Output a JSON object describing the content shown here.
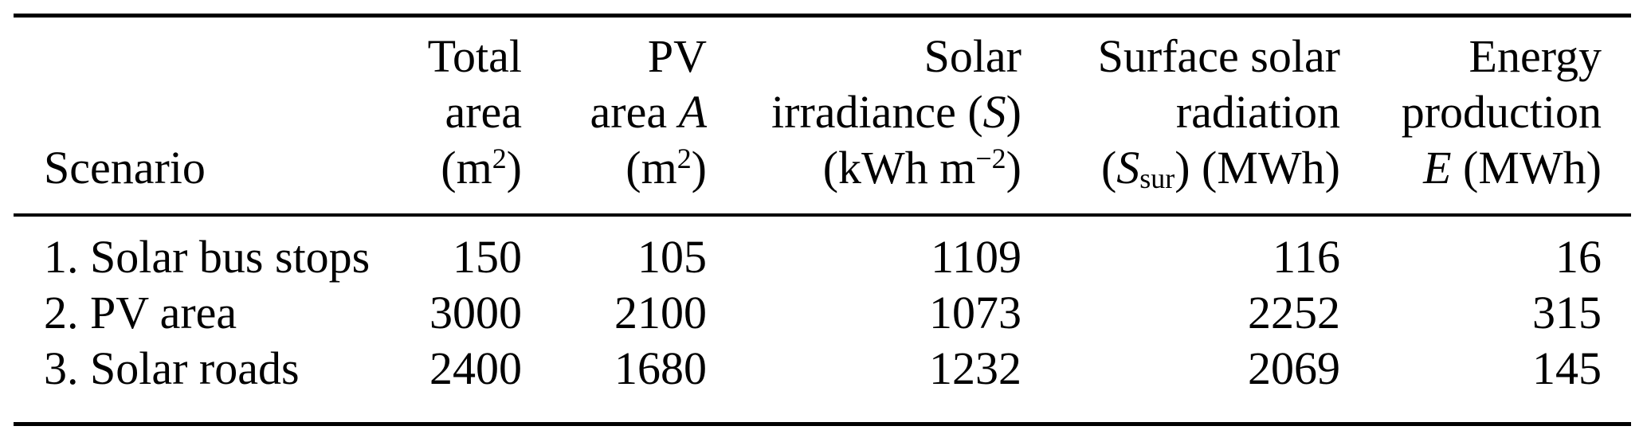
{
  "figure": {
    "kind": "academic-paper-table",
    "caption": ""
  },
  "colors": {
    "background": "#ffffff",
    "text": "#000000",
    "rule": "#000000"
  },
  "table": {
    "header": {
      "scenario": "Scenario",
      "total_area": {
        "l1": "Total",
        "l2": "area",
        "l3_pre": "(m",
        "l3_sup": "2",
        "l3_post": ")"
      },
      "pv_area": {
        "l1": "PV",
        "l2_pre": "area ",
        "l2_it": "A",
        "l3_pre": "(m",
        "l3_sup": "2",
        "l3_post": ")"
      },
      "solar_irradiance": {
        "l1": "Solar",
        "l2_pre": "irradiance (",
        "l2_it": "S",
        "l2_post": ")",
        "l3_pre": "(kWh m",
        "l3_sup": "−2",
        "l3_post": ")"
      },
      "surface_solar_radiation": {
        "l1": "Surface solar",
        "l2": "radiation",
        "l3_pre": "(",
        "l3_it": "S",
        "l3_sub": "sur",
        "l3_post": ") (MWh)"
      },
      "energy_production": {
        "l1": "Energy",
        "l2": "production",
        "l3_it": "E",
        "l3_post": " (MWh)"
      }
    },
    "rows": [
      {
        "scenario": "1. Solar bus stops",
        "total_area": "150",
        "pv_area": "105",
        "solar_irradiance": "1109",
        "surface_solar_radiation": "116",
        "energy_production": "16"
      },
      {
        "scenario": "2. PV area",
        "total_area": "3000",
        "pv_area": "2100",
        "solar_irradiance": "1073",
        "surface_solar_radiation": "2252",
        "energy_production": "315"
      },
      {
        "scenario": "3. Solar roads",
        "total_area": "2400",
        "pv_area": "1680",
        "solar_irradiance": "1232",
        "surface_solar_radiation": "2069",
        "energy_production": "145"
      }
    ]
  }
}
